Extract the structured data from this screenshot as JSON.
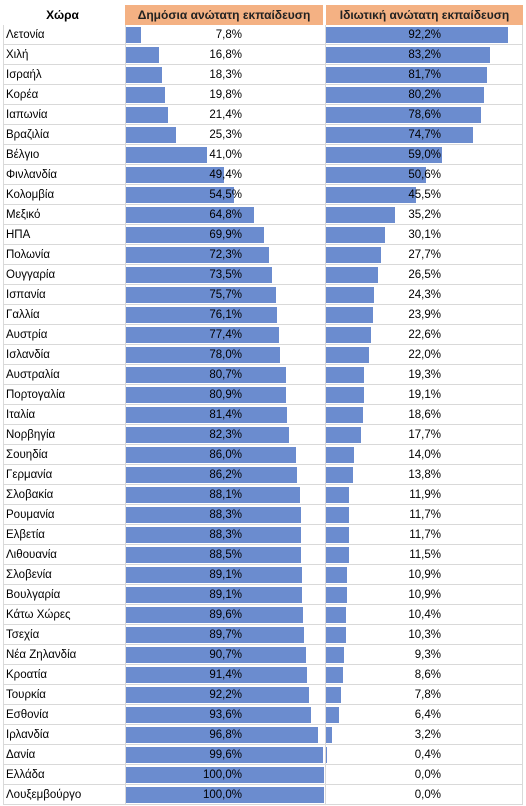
{
  "chart_data": {
    "type": "table",
    "headers": {
      "country": "Χώρα",
      "public": "Δημόσια ανώτατη εκπαίδευση",
      "private": "Ιδιωτική ανώτατη εκπαίδευση"
    },
    "columns": [
      "Χώρα",
      "Δημόσια ανώτατη εκπαίδευση",
      "Ιδιωτική ανώτατη εκπαίδευση"
    ],
    "rows": [
      {
        "country": "Λετονία",
        "public": 7.8,
        "private": 92.2,
        "public_label": "7,8%",
        "private_label": "92,2%"
      },
      {
        "country": "Χιλή",
        "public": 16.8,
        "private": 83.2,
        "public_label": "16,8%",
        "private_label": "83,2%"
      },
      {
        "country": "Ισραήλ",
        "public": 18.3,
        "private": 81.7,
        "public_label": "18,3%",
        "private_label": "81,7%"
      },
      {
        "country": "Κορέα",
        "public": 19.8,
        "private": 80.2,
        "public_label": "19,8%",
        "private_label": "80,2%"
      },
      {
        "country": "Ιαπωνία",
        "public": 21.4,
        "private": 78.6,
        "public_label": "21,4%",
        "private_label": "78,6%"
      },
      {
        "country": "Βραζιλία",
        "public": 25.3,
        "private": 74.7,
        "public_label": "25,3%",
        "private_label": "74,7%"
      },
      {
        "country": "Βέλγιο",
        "public": 41.0,
        "private": 59.0,
        "public_label": "41,0%",
        "private_label": "59,0%"
      },
      {
        "country": "Φινλανδία",
        "public": 49.4,
        "private": 50.6,
        "public_label": "49,4%",
        "private_label": "50,6%"
      },
      {
        "country": "Κολομβία",
        "public": 54.5,
        "private": 45.5,
        "public_label": "54,5%",
        "private_label": "45,5%"
      },
      {
        "country": "Μεξικό",
        "public": 64.8,
        "private": 35.2,
        "public_label": "64,8%",
        "private_label": "35,2%"
      },
      {
        "country": "ΗΠΑ",
        "public": 69.9,
        "private": 30.1,
        "public_label": "69,9%",
        "private_label": "30,1%"
      },
      {
        "country": "Πολωνία",
        "public": 72.3,
        "private": 27.7,
        "public_label": "72,3%",
        "private_label": "27,7%"
      },
      {
        "country": "Ουγγαρία",
        "public": 73.5,
        "private": 26.5,
        "public_label": "73,5%",
        "private_label": "26,5%"
      },
      {
        "country": "Ισπανία",
        "public": 75.7,
        "private": 24.3,
        "public_label": "75,7%",
        "private_label": "24,3%"
      },
      {
        "country": "Γαλλία",
        "public": 76.1,
        "private": 23.9,
        "public_label": "76,1%",
        "private_label": "23,9%"
      },
      {
        "country": "Αυστρία",
        "public": 77.4,
        "private": 22.6,
        "public_label": "77,4%",
        "private_label": "22,6%"
      },
      {
        "country": "Ισλανδία",
        "public": 78.0,
        "private": 22.0,
        "public_label": "78,0%",
        "private_label": "22,0%"
      },
      {
        "country": "Αυστραλία",
        "public": 80.7,
        "private": 19.3,
        "public_label": "80,7%",
        "private_label": "19,3%"
      },
      {
        "country": "Πορτογαλία",
        "public": 80.9,
        "private": 19.1,
        "public_label": "80,9%",
        "private_label": "19,1%"
      },
      {
        "country": "Ιταλία",
        "public": 81.4,
        "private": 18.6,
        "public_label": "81,4%",
        "private_label": "18,6%"
      },
      {
        "country": "Νορβηγία",
        "public": 82.3,
        "private": 17.7,
        "public_label": "82,3%",
        "private_label": "17,7%"
      },
      {
        "country": "Σουηδία",
        "public": 86.0,
        "private": 14.0,
        "public_label": "86,0%",
        "private_label": "14,0%"
      },
      {
        "country": "Γερμανία",
        "public": 86.2,
        "private": 13.8,
        "public_label": "86,2%",
        "private_label": "13,8%"
      },
      {
        "country": "Σλοβακία",
        "public": 88.1,
        "private": 11.9,
        "public_label": "88,1%",
        "private_label": "11,9%"
      },
      {
        "country": "Ρουμανία",
        "public": 88.3,
        "private": 11.7,
        "public_label": "88,3%",
        "private_label": "11,7%"
      },
      {
        "country": "Ελβετία",
        "public": 88.3,
        "private": 11.7,
        "public_label": "88,3%",
        "private_label": "11,7%"
      },
      {
        "country": "Λιθουανία",
        "public": 88.5,
        "private": 11.5,
        "public_label": "88,5%",
        "private_label": "11,5%"
      },
      {
        "country": "Σλοβενία",
        "public": 89.1,
        "private": 10.9,
        "public_label": "89,1%",
        "private_label": "10,9%"
      },
      {
        "country": "Βουλγαρία",
        "public": 89.1,
        "private": 10.9,
        "public_label": "89,1%",
        "private_label": "10,9%"
      },
      {
        "country": "Κάτω Χώρες",
        "public": 89.6,
        "private": 10.4,
        "public_label": "89,6%",
        "private_label": "10,4%"
      },
      {
        "country": "Τσεχία",
        "public": 89.7,
        "private": 10.3,
        "public_label": "89,7%",
        "private_label": "10,3%"
      },
      {
        "country": "Νέα Ζηλανδία",
        "public": 90.7,
        "private": 9.3,
        "public_label": "90,7%",
        "private_label": "9,3%"
      },
      {
        "country": "Κροατία",
        "public": 91.4,
        "private": 8.6,
        "public_label": "91,4%",
        "private_label": "8,6%"
      },
      {
        "country": "Τουρκία",
        "public": 92.2,
        "private": 7.8,
        "public_label": "92,2%",
        "private_label": "7,8%"
      },
      {
        "country": "Εσθονία",
        "public": 93.6,
        "private": 6.4,
        "public_label": "93,6%",
        "private_label": "6,4%"
      },
      {
        "country": "Ιρλανδία",
        "public": 96.8,
        "private": 3.2,
        "public_label": "96,8%",
        "private_label": "3,2%"
      },
      {
        "country": "Δανία",
        "public": 99.6,
        "private": 0.4,
        "public_label": "99,6%",
        "private_label": "0,4%"
      },
      {
        "country": "Ελλάδα",
        "public": 100.0,
        "private": 0.0,
        "public_label": "100,0%",
        "private_label": "0,0%"
      },
      {
        "country": "Λουξεμβούργο",
        "public": 100.0,
        "private": 0.0,
        "public_label": "100,0%",
        "private_label": "0,0%"
      }
    ],
    "bar_max": 100,
    "colors": {
      "bar": "#6b8ccf",
      "header_fill": "#f4b183",
      "gridline": "#d9d9d9"
    }
  }
}
